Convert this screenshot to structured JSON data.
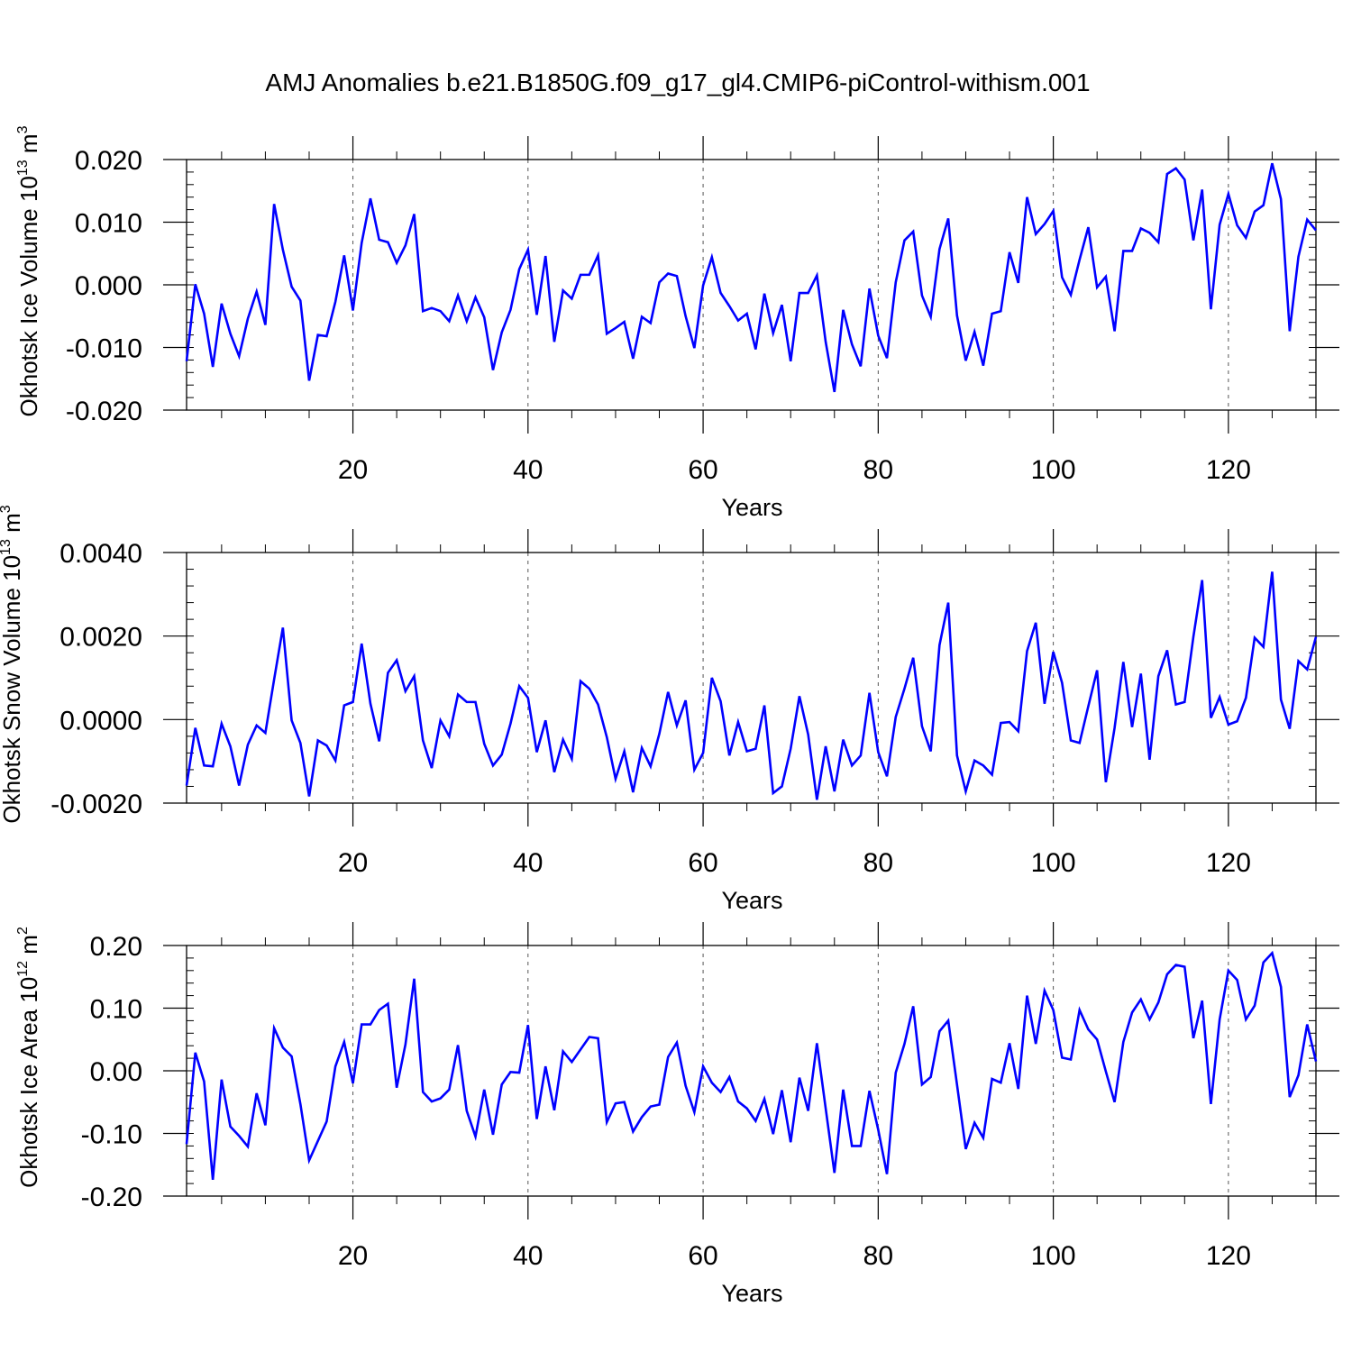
{
  "title": "AMJ Anomalies b.e21.B1850G.f09_g17_gl4.CMIP6-piControl-withism.001",
  "colors": {
    "line": "#0000ff",
    "axis": "#000000",
    "grid": "#555555"
  },
  "chart_data": [
    {
      "type": "line",
      "xlabel": "Years",
      "ylabel": {
        "text": "Okhotsk Ice Volume 10",
        "exp": "13",
        "unit": " m",
        "unit_exp": "3"
      },
      "xlim": [
        1,
        130
      ],
      "ylim": [
        -0.02,
        0.02
      ],
      "xticks": [
        20,
        40,
        60,
        80,
        100,
        120
      ],
      "xtick_labels": [
        "20",
        "40",
        "60",
        "80",
        "100",
        "120"
      ],
      "yticks": [
        0.02,
        0.01,
        0.0,
        -0.01,
        -0.02
      ],
      "ytick_labels": [
        "0.020",
        "0.010",
        "0.000",
        "-0.010",
        "-0.020"
      ],
      "yminor_step": 0.002,
      "vgrid": [
        20,
        40,
        60,
        80,
        100,
        120
      ],
      "series": [
        {
          "name": "Okhotsk Ice Volume",
          "values": [
            -0.0122,
            0.0001,
            -0.0046,
            -0.0131,
            -0.003,
            -0.0078,
            -0.0114,
            -0.0054,
            -0.0011,
            -0.0064,
            0.0129,
            0.0056,
            -0.0003,
            -0.0025,
            -0.0153,
            -0.008,
            -0.0082,
            -0.0027,
            0.0047,
            -0.0041,
            0.0067,
            0.0138,
            0.0072,
            0.0068,
            0.0035,
            0.0063,
            0.0113,
            -0.0042,
            -0.0037,
            -0.0042,
            -0.0058,
            -0.0017,
            -0.0058,
            -0.002,
            -0.0052,
            -0.0136,
            -0.0076,
            -0.004,
            0.0025,
            0.0056,
            -0.0048,
            0.0046,
            -0.0091,
            -0.0009,
            -0.0022,
            0.0016,
            0.0016,
            0.0047,
            -0.0078,
            -0.0069,
            -0.0059,
            -0.0118,
            -0.0051,
            -0.0061,
            0.0004,
            0.0018,
            0.0014,
            -0.005,
            -0.0101,
            -0.0001,
            0.0044,
            -0.0013,
            -0.0034,
            -0.0057,
            -0.0046,
            -0.0103,
            -0.0014,
            -0.0077,
            -0.0032,
            -0.0122,
            -0.0013,
            -0.0013,
            0.0015,
            -0.0091,
            -0.0171,
            -0.004,
            -0.0095,
            -0.013,
            -0.0006,
            -0.0081,
            -0.0117,
            0.0004,
            0.0071,
            0.0085,
            -0.0017,
            -0.0051,
            0.0057,
            0.0106,
            -0.0049,
            -0.0121,
            -0.0075,
            -0.0129,
            -0.0046,
            -0.0042,
            0.0052,
            0.0003,
            0.014,
            0.0081,
            0.0097,
            0.0118,
            0.0012,
            -0.0016,
            0.004,
            0.0092,
            -0.0004,
            0.0013,
            -0.0074,
            0.0054,
            0.0054,
            0.009,
            0.0083,
            0.0068,
            0.0177,
            0.0186,
            0.0168,
            0.0071,
            0.0152,
            -0.0039,
            0.0096,
            0.0145,
            0.0095,
            0.0075,
            0.0117,
            0.0127,
            0.0194,
            0.0137,
            -0.0074,
            0.0045,
            0.0104,
            0.0087
          ]
        }
      ]
    },
    {
      "type": "line",
      "xlabel": "Years",
      "ylabel": {
        "text": "Okhotsk Snow Volume 10",
        "exp": "13",
        "unit": " m",
        "unit_exp": "3"
      },
      "xlim": [
        1,
        130
      ],
      "ylim": [
        -0.002,
        0.004
      ],
      "xticks": [
        20,
        40,
        60,
        80,
        100,
        120
      ],
      "xtick_labels": [
        "20",
        "40",
        "60",
        "80",
        "100",
        "120"
      ],
      "yticks": [
        0.004,
        0.002,
        0.0,
        -0.002
      ],
      "ytick_labels": [
        "0.0040",
        "0.0020",
        "0.0000",
        "-0.0020"
      ],
      "yminor_step": 0.0004,
      "vgrid": [
        20,
        40,
        60,
        80,
        100,
        120
      ],
      "series": [
        {
          "name": "Okhotsk Snow Volume",
          "values": [
            -0.00158,
            -0.0002,
            -0.0011,
            -0.00112,
            -0.0001,
            -0.00064,
            -0.00158,
            -0.0006,
            -0.00014,
            -0.00032,
            0.00096,
            0.0022,
            -2e-05,
            -0.00056,
            -0.00184,
            -0.0005,
            -0.00062,
            -0.00098,
            0.00034,
            0.00042,
            0.00182,
            0.00038,
            -0.00052,
            0.00112,
            0.00142,
            0.00068,
            0.00104,
            -0.0005,
            -0.00116,
            -2e-05,
            -0.0004,
            0.0006,
            0.00042,
            0.00042,
            -0.00058,
            -0.0011,
            -0.00084,
            -0.0001,
            0.0008,
            0.00052,
            -0.00078,
            -2e-05,
            -0.00126,
            -0.00048,
            -0.00094,
            0.00092,
            0.00074,
            0.00036,
            -0.00042,
            -0.00142,
            -0.00076,
            -0.00174,
            -0.00068,
            -0.00112,
            -0.00034,
            0.00066,
            -0.00014,
            0.00046,
            -0.0012,
            -0.0008,
            0.001,
            0.00044,
            -0.00086,
            -6e-05,
            -0.00076,
            -0.0007,
            0.00034,
            -0.00176,
            -0.0016,
            -0.0007,
            0.00056,
            -0.00036,
            -0.00192,
            -0.00064,
            -0.00172,
            -0.00048,
            -0.0011,
            -0.00086,
            0.00064,
            -0.00078,
            -0.00136,
            6e-05,
            0.00074,
            0.00148,
            -0.00016,
            -0.00076,
            0.00178,
            0.0028,
            -0.00086,
            -0.00172,
            -0.00098,
            -0.0011,
            -0.00132,
            -8e-05,
            -6e-05,
            -0.00028,
            0.00164,
            0.00232,
            0.00038,
            0.00162,
            0.00088,
            -0.0005,
            -0.00056,
            0.00032,
            0.00118,
            -0.0015,
            -0.0002,
            0.00138,
            -0.00018,
            0.0011,
            -0.00096,
            0.00104,
            0.00166,
            0.00036,
            0.00042,
            0.00198,
            0.00334,
            4e-05,
            0.00054,
            -0.00012,
            -4e-05,
            0.00052,
            0.00196,
            0.00174,
            0.00354,
            0.00048,
            -0.00022,
            0.0014,
            0.0012,
            0.00198
          ]
        }
      ]
    },
    {
      "type": "line",
      "xlabel": "Years",
      "ylabel": {
        "text": "Okhotsk Ice Area 10",
        "exp": "12",
        "unit": " m",
        "unit_exp": "2"
      },
      "xlim": [
        1,
        130
      ],
      "ylim": [
        -0.2,
        0.2
      ],
      "xticks": [
        20,
        40,
        60,
        80,
        100,
        120
      ],
      "xtick_labels": [
        "20",
        "40",
        "60",
        "80",
        "100",
        "120"
      ],
      "yticks": [
        0.2,
        0.1,
        0.0,
        -0.1,
        -0.2
      ],
      "ytick_labels": [
        "0.20",
        "0.10",
        "0.00",
        "-0.10",
        "-0.20"
      ],
      "yminor_step": 0.02,
      "vgrid": [
        20,
        40,
        60,
        80,
        100,
        120
      ],
      "series": [
        {
          "name": "Okhotsk Ice Area",
          "values": [
            -0.117,
            0.029,
            -0.017,
            -0.174,
            -0.014,
            -0.089,
            -0.104,
            -0.121,
            -0.036,
            -0.087,
            0.068,
            0.037,
            0.023,
            -0.053,
            -0.143,
            -0.112,
            -0.081,
            0.007,
            0.046,
            -0.02,
            0.074,
            0.074,
            0.097,
            0.107,
            -0.027,
            0.042,
            0.147,
            -0.034,
            -0.049,
            -0.044,
            -0.03,
            0.041,
            -0.064,
            -0.105,
            -0.03,
            -0.102,
            -0.022,
            -0.002,
            -0.003,
            0.073,
            -0.077,
            0.007,
            -0.063,
            0.031,
            0.014,
            0.034,
            0.054,
            0.052,
            -0.082,
            -0.052,
            -0.05,
            -0.097,
            -0.074,
            -0.057,
            -0.054,
            0.022,
            0.045,
            -0.024,
            -0.066,
            0.007,
            -0.019,
            -0.034,
            -0.01,
            -0.049,
            -0.06,
            -0.08,
            -0.045,
            -0.101,
            -0.031,
            -0.114,
            -0.011,
            -0.064,
            0.044,
            -0.06,
            -0.163,
            -0.03,
            -0.12,
            -0.12,
            -0.032,
            -0.094,
            -0.165,
            -0.003,
            0.043,
            0.103,
            -0.022,
            -0.01,
            0.063,
            0.08,
            -0.022,
            -0.125,
            -0.083,
            -0.107,
            -0.013,
            -0.019,
            0.044,
            -0.029,
            0.12,
            0.043,
            0.128,
            0.097,
            0.021,
            0.018,
            0.097,
            0.066,
            0.05,
            -0.001,
            -0.05,
            0.046,
            0.093,
            0.114,
            0.082,
            0.109,
            0.154,
            0.169,
            0.166,
            0.052,
            0.112,
            -0.053,
            0.082,
            0.16,
            0.145,
            0.082,
            0.104,
            0.173,
            0.188,
            0.134,
            -0.042,
            -0.007,
            0.074,
            0.015
          ]
        }
      ]
    }
  ]
}
